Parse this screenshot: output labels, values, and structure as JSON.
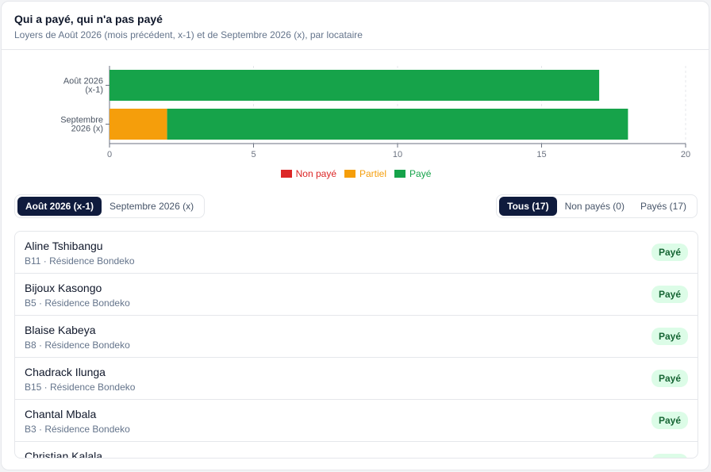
{
  "header": {
    "title": "Qui a payé, qui n'a pas payé",
    "subtitle": "Loyers de Août 2026 (mois précédent, x-1) et de Septembre 2026 (x), par locataire"
  },
  "chart_data": {
    "type": "bar",
    "orientation": "horizontal",
    "stacked": true,
    "categories": [
      "Août 2026 (x-1)",
      "Septembre 2026 (x)"
    ],
    "category_lines": [
      [
        "Août 2026",
        "(x-1)"
      ],
      [
        "Septembre",
        "2026 (x)"
      ]
    ],
    "series": [
      {
        "name": "Non payé",
        "color": "#dc2626",
        "values": [
          0,
          0
        ]
      },
      {
        "name": "Partiel",
        "color": "#f59e0b",
        "values": [
          0,
          2
        ]
      },
      {
        "name": "Payé",
        "color": "#16a34a",
        "values": [
          17,
          16
        ]
      }
    ],
    "xlim": [
      0,
      20
    ],
    "xticks": [
      0,
      5,
      10,
      15,
      20
    ],
    "grid": true,
    "legend": "bottom"
  },
  "legend": {
    "items": [
      {
        "label": "Non payé",
        "color": "#dc2626"
      },
      {
        "label": "Partiel",
        "color": "#f59e0b"
      },
      {
        "label": "Payé",
        "color": "#16a34a"
      }
    ]
  },
  "month_tabs": [
    {
      "label": "Août 2026 (x-1)",
      "active": true
    },
    {
      "label": "Septembre 2026 (x)",
      "active": false
    }
  ],
  "filters": [
    {
      "label": "Tous (17)",
      "active": true
    },
    {
      "label": "Non payés (0)",
      "active": false
    },
    {
      "label": "Payés (17)",
      "active": false
    }
  ],
  "tenants": [
    {
      "name": "Aline Tshibangu",
      "unit": "B11 · Résidence Bondeko",
      "status": "Payé"
    },
    {
      "name": "Bijoux Kasongo",
      "unit": "B5 · Résidence Bondeko",
      "status": "Payé"
    },
    {
      "name": "Blaise Kabeya",
      "unit": "B8 · Résidence Bondeko",
      "status": "Payé"
    },
    {
      "name": "Chadrack Ilunga",
      "unit": "B15 · Résidence Bondeko",
      "status": "Payé"
    },
    {
      "name": "Chantal Mbala",
      "unit": "B3 · Résidence Bondeko",
      "status": "Payé"
    },
    {
      "name": "Christian Kalala",
      "unit": "",
      "status": "Payé"
    }
  ]
}
